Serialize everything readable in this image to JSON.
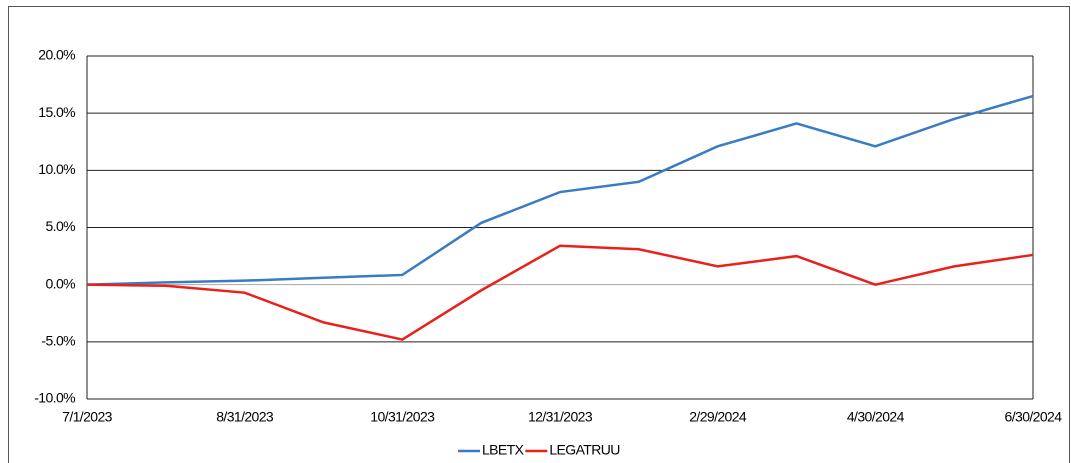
{
  "chart_data": {
    "type": "line",
    "categories": [
      "7/1/2023",
      null,
      "8/31/2023",
      null,
      "10/31/2023",
      null,
      "12/31/2023",
      null,
      "2/29/2024",
      null,
      "4/30/2024",
      null,
      "6/30/2024"
    ],
    "series": [
      {
        "name": "LBETX",
        "color": "#3a7cc4",
        "values": [
          0,
          0.2,
          0.35,
          0.6,
          0.85,
          5.4,
          8.1,
          9.0,
          12.1,
          14.1,
          12.1,
          14.5,
          16.5
        ]
      },
      {
        "name": "LEGATRUU",
        "color": "#e8211b",
        "values": [
          0,
          -0.1,
          -0.7,
          -3.3,
          -4.8,
          -0.5,
          3.4,
          3.1,
          1.6,
          2.5,
          0,
          1.6,
          2.6
        ]
      }
    ],
    "ylim": [
      -10,
      20
    ],
    "yticks": [
      {
        "value": -10,
        "label": "-10.0%"
      },
      {
        "value": -5,
        "label": "-5.0%"
      },
      {
        "value": 0,
        "label": "0.0%"
      },
      {
        "value": 5,
        "label": "5.0%"
      },
      {
        "value": 10,
        "label": "10.0%"
      },
      {
        "value": 15,
        "label": "15.0%"
      },
      {
        "value": 20,
        "label": "20.0%"
      }
    ],
    "grid": true,
    "legend": "bottom"
  }
}
